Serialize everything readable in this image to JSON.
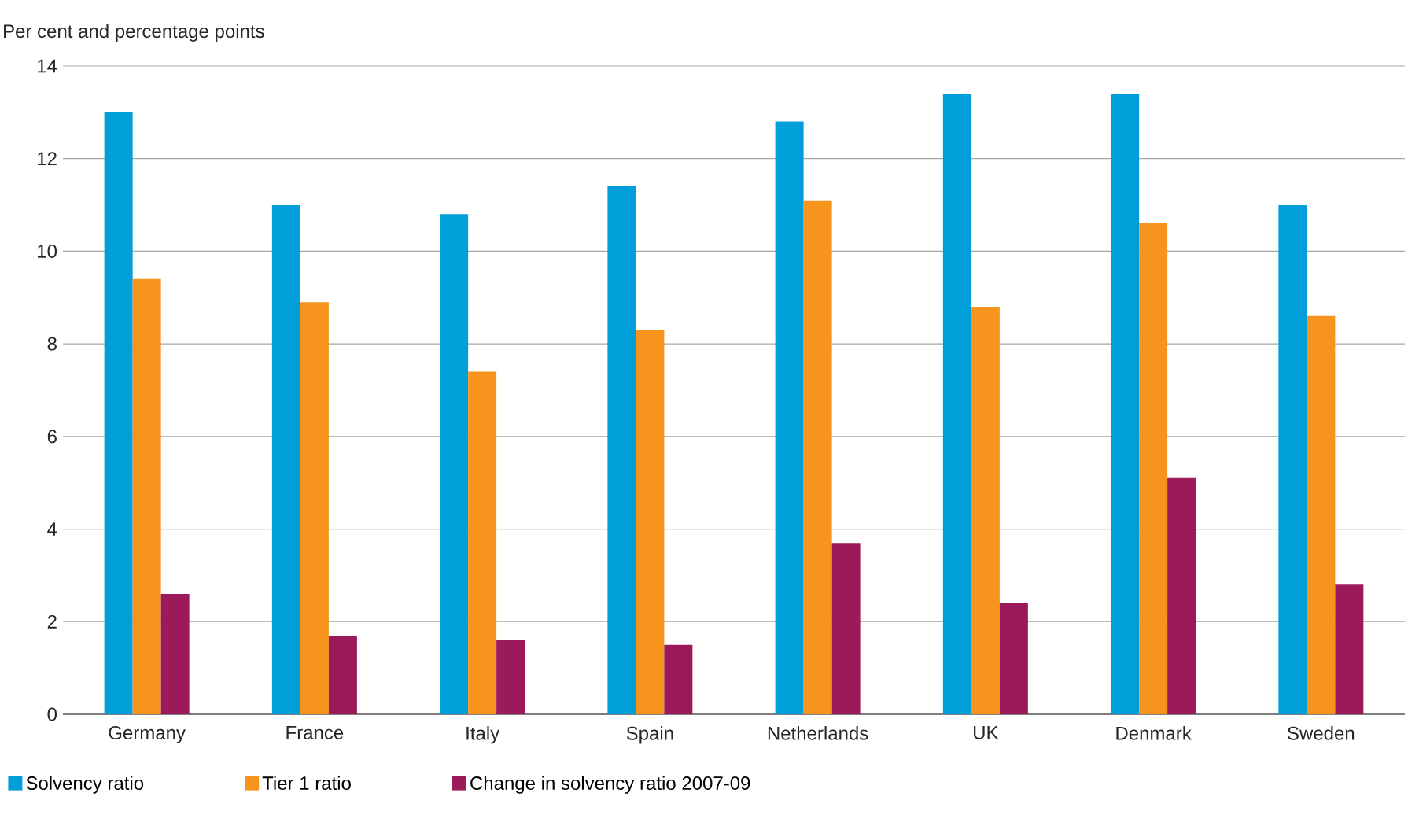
{
  "chart_data": {
    "type": "bar",
    "ylabel": "Per cent and percentage points",
    "categories": [
      "Germany",
      "France",
      "Italy",
      "Spain",
      "Netherlands",
      "UK",
      "Denmark",
      "Sweden"
    ],
    "series": [
      {
        "name": "Solvency ratio",
        "color": "#009fda",
        "values": [
          13.0,
          11.0,
          10.8,
          11.4,
          12.8,
          13.4,
          13.4,
          11.0
        ]
      },
      {
        "name": "Tier 1 ratio",
        "color": "#f7941d",
        "values": [
          9.4,
          8.9,
          7.4,
          8.3,
          11.1,
          8.8,
          10.6,
          8.6
        ]
      },
      {
        "name": "Change in solvency ratio 2007-09",
        "color": "#9b1b5a",
        "values": [
          2.6,
          1.7,
          1.6,
          1.5,
          3.7,
          2.4,
          5.1,
          2.8
        ]
      }
    ],
    "ylim": [
      0,
      14
    ],
    "yticks": [
      0,
      2,
      4,
      6,
      8,
      10,
      12,
      14
    ],
    "grid": "y",
    "legend": "bottom"
  }
}
